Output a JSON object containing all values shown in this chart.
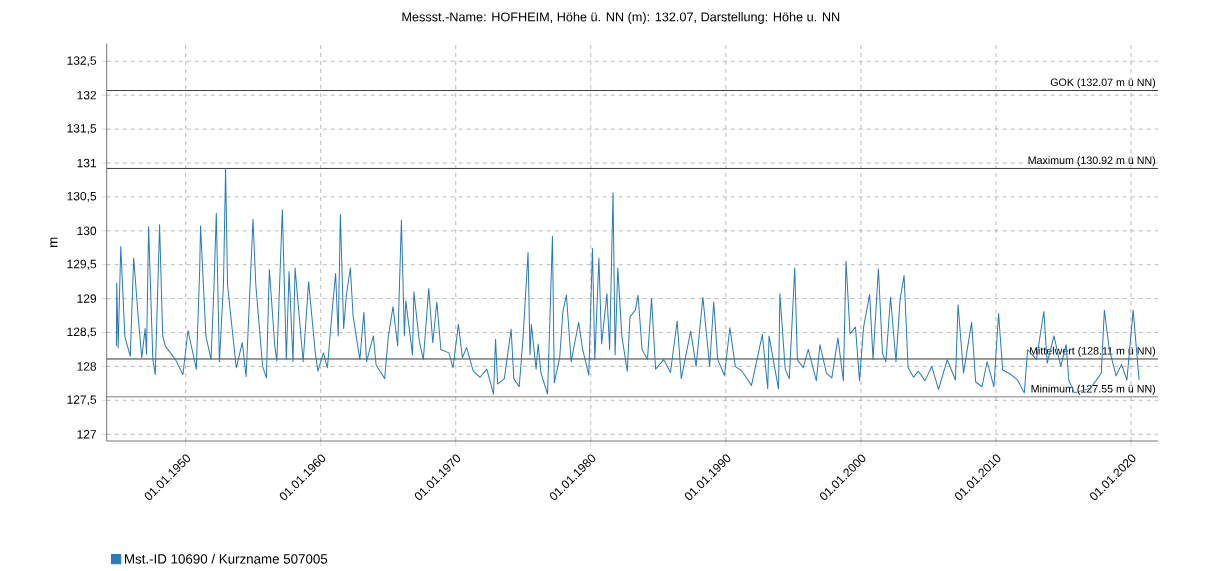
{
  "chart_data": {
    "type": "line",
    "title": "Messst.-Name: HOFHEIM, Höhe ü. NN (m): 132.07, Darstellung: Höhe u. NN",
    "ylabel": "m",
    "xlim": [
      "1944-02-25",
      "2022-01-01"
    ],
    "ylim": [
      126.9,
      132.76
    ],
    "xticks": [
      {
        "value": "1950-01-01",
        "label": "01.01.1950"
      },
      {
        "value": "1960-01-01",
        "label": "01.01.1960"
      },
      {
        "value": "1970-01-01",
        "label": "01.01.1970"
      },
      {
        "value": "1980-01-01",
        "label": "01.01.1980"
      },
      {
        "value": "1990-01-01",
        "label": "01.01.1990"
      },
      {
        "value": "2000-01-01",
        "label": "01.01.2000"
      },
      {
        "value": "2010-01-01",
        "label": "01.01.2010"
      },
      {
        "value": "2020-01-01",
        "label": "01.01.2020"
      }
    ],
    "yticks": [
      127,
      {
        "value": 127.5,
        "label": "127,5"
      },
      128,
      {
        "value": 128.5,
        "label": "128,5"
      },
      129,
      {
        "value": 129.5,
        "label": "129,5"
      },
      130,
      {
        "value": 130.5,
        "label": "130,5"
      },
      131,
      {
        "value": 131.5,
        "label": "131,5"
      },
      132,
      {
        "value": 132.5,
        "label": "132,5"
      }
    ],
    "grid": true,
    "legend": "bottom left",
    "ref_lines": [
      {
        "axis": "y",
        "value": 132.07,
        "label": "GOK (132.07 m ü NN)"
      },
      {
        "axis": "y",
        "value": 130.92,
        "label": "Maximum (130.92 m ü NN)"
      },
      {
        "axis": "y",
        "value": 128.11,
        "label": "Mittelwert (128.11 m ü NN)"
      },
      {
        "axis": "y",
        "value": 127.55,
        "label": "Minimum (127.55 m ü NN)"
      }
    ],
    "series": [
      {
        "name": "Mst.-ID 10690 / Kurzname 507005",
        "color": "#2a7ab8",
        "x": [
          "1944-11-14",
          "1944-11-25",
          "1945-01-01",
          "1945-03-13",
          "1945-07-01",
          "1945-11-25",
          "1946-02-25",
          "1946-07-01",
          "1946-10-01",
          "1947-01-01",
          "1947-02-07",
          "1947-04-04",
          "1947-07-28",
          "1947-10-01",
          "1948-01-26",
          "1948-04-19",
          "1948-07-01",
          "1949-04-01",
          "1949-10-19",
          "1950-03-05",
          "1950-10-15",
          "1951-01-15",
          "1951-02-07",
          "1951-07-01",
          "1951-11-17",
          "1952-02-07",
          "1952-04-08",
          "1952-07-01",
          "1952-10-19",
          "1952-12-16",
          "1953-02-07",
          "1953-07-01",
          "1953-10-01",
          "1954-03-13",
          "1954-06-23",
          "1954-12-27",
          "1955-03-13",
          "1955-09-13",
          "1955-12-23",
          "1956-03-13",
          "1956-08-07",
          "1956-10-01",
          "1957-02-28",
          "1957-06-16",
          "1957-08-28",
          "1957-12-13",
          "1958-02-07",
          "1958-09-13",
          "1959-02-07",
          "1959-08-07",
          "1959-10-19",
          "1960-03-13",
          "1960-07-01",
          "1960-11-03",
          "1961-02-07",
          "1961-04-19",
          "1961-06-16",
          "1961-09-13",
          "1961-11-25",
          "1962-03-13",
          "1962-05-25",
          "1962-11-25",
          "1963-03-13",
          "1963-05-25",
          "1963-11-25",
          "1964-02-07",
          "1964-09-27",
          "1965-01-01",
          "1965-05-10",
          "1965-09-13",
          "1965-12-23",
          "1966-03-13",
          "1966-04-19",
          "1966-10-19",
          "1966-11-25",
          "1967-04-19",
          "1967-08-07",
          "1968-01-01",
          "1968-04-19",
          "1968-08-07",
          "1968-11-25",
          "1969-07-01",
          "1969-10-19",
          "1970-03-13",
          "1970-07-01",
          "1970-10-19",
          "1971-04-19",
          "1971-10-19",
          "1972-04-19",
          "1972-10-19",
          "1972-12-13",
          "1973-02-07",
          "1973-08-07",
          "1974-02-07",
          "1974-04-19",
          "1974-09-13",
          "1974-12-23",
          "1975-05-10",
          "1975-07-01",
          "1975-08-07",
          "1975-12-13",
          "1976-02-07",
          "1976-04-19",
          "1976-10-19",
          "1977-02-28",
          "1977-04-19",
          "1977-09-13",
          "1977-12-05",
          "1978-03-13",
          "1978-07-19",
          "1979-02-07",
          "1979-05-25",
          "1979-11-07",
          "1980-02-14",
          "1980-04-19",
          "1980-08-07",
          "1980-10-19",
          "1981-03-13",
          "1981-05-25",
          "1981-08-25",
          "1981-10-19",
          "1982-01-01",
          "1982-04-19",
          "1982-09-13",
          "1982-11-25",
          "1983-04-19",
          "1983-07-01",
          "1983-10-19",
          "1984-03-13",
          "1984-07-01",
          "1984-10-19",
          "1985-05-25",
          "1985-11-25",
          "1986-05-25",
          "1986-09-13",
          "1987-05-25",
          "1987-10-19",
          "1988-04-19",
          "1988-10-19",
          "1989-02-07",
          "1989-05-25",
          "1989-11-25",
          "1990-04-19",
          "1990-09-13",
          "1991-03-13",
          "1991-11-25",
          "1992-09-13",
          "1993-02-07",
          "1993-03-13",
          "1993-11-25",
          "1994-01-01",
          "1994-05-25",
          "1994-09-13",
          "1995-02-07",
          "1995-04-19",
          "1995-09-23",
          "1996-02-07",
          "1996-09-13",
          "1996-12-20",
          "1997-06-13",
          "1997-11-07",
          "1998-04-19",
          "1998-09-13",
          "1998-11-25",
          "1999-03-13",
          "1999-08-07",
          "1999-11-25",
          "2000-03-13",
          "2000-08-25",
          "2000-11-25",
          "2001-03-13",
          "2001-04-19",
          "2001-08-07",
          "2001-11-07",
          "2002-03-13",
          "2002-08-07",
          "2002-11-25",
          "2003-03-13",
          "2003-07-01",
          "2003-11-25",
          "2004-04-01",
          "2004-10-01",
          "2005-04-01",
          "2005-10-01",
          "2006-05-25",
          "2007-01-01",
          "2007-03-13",
          "2007-08-07",
          "2008-03-13",
          "2008-07-01",
          "2008-12-20",
          "2009-05-07",
          "2009-11-07",
          "2010-03-13",
          "2010-07-01",
          "2011-02-07",
          "2011-08-07",
          "2012-02-07",
          "2012-05-07",
          "2013-01-01",
          "2013-07-19",
          "2013-10-19",
          "2014-04-19",
          "2014-10-19",
          "2015-03-13",
          "2015-05-25",
          "2015-10-19",
          "2017-01-01",
          "2017-10-19",
          "2018-01-11",
          "2018-05-25",
          "2018-11-25",
          "2019-04-19",
          "2019-09-13",
          "2020-02-28",
          "2020-08-07"
        ],
        "values": [
          128.3,
          129.23,
          128.27,
          129.77,
          128.44,
          128.15,
          129.6,
          128.7,
          128.13,
          128.56,
          128.18,
          130.06,
          128.1,
          127.88,
          130.09,
          128.45,
          128.3,
          128.1,
          127.88,
          128.53,
          127.96,
          129.43,
          130.07,
          128.45,
          128.1,
          129.2,
          130.26,
          128.07,
          129.2,
          130.92,
          129.2,
          128.45,
          127.98,
          128.35,
          127.85,
          130.17,
          129.2,
          128.0,
          127.83,
          129.43,
          128.3,
          128.08,
          130.31,
          128.1,
          129.4,
          128.07,
          129.45,
          128.07,
          129.25,
          128.2,
          127.93,
          128.2,
          127.98,
          128.8,
          129.37,
          128.45,
          130.24,
          128.56,
          129.05,
          129.45,
          128.75,
          128.1,
          128.8,
          128.07,
          128.45,
          128.02,
          127.82,
          128.43,
          128.88,
          128.3,
          130.16,
          128.45,
          128.97,
          128.17,
          129.1,
          128.38,
          128.1,
          129.15,
          128.35,
          128.95,
          128.25,
          128.2,
          127.98,
          128.62,
          128.13,
          128.28,
          127.93,
          127.84,
          127.96,
          127.59,
          128.4,
          127.74,
          127.82,
          128.55,
          127.82,
          127.7,
          128.4,
          129.68,
          128.17,
          128.62,
          127.96,
          128.33,
          127.91,
          127.59,
          129.92,
          127.76,
          128.13,
          128.8,
          129.05,
          128.07,
          128.65,
          128.25,
          127.87,
          129.74,
          128.1,
          129.6,
          128.33,
          129.07,
          128.25,
          130.56,
          128.17,
          129.45,
          128.45,
          127.93,
          128.73,
          128.83,
          129.05,
          128.25,
          128.1,
          129.0,
          127.96,
          128.1,
          127.91,
          128.67,
          127.82,
          128.52,
          128.0,
          129.02,
          128.0,
          128.95,
          128.1,
          127.87,
          128.57,
          128.0,
          127.93,
          127.72,
          128.47,
          127.67,
          128.45,
          127.67,
          129.07,
          127.96,
          127.82,
          129.45,
          128.1,
          127.98,
          128.25,
          127.79,
          128.32,
          127.9,
          127.83,
          128.42,
          127.79,
          129.55,
          128.48,
          128.58,
          127.79,
          128.58,
          129.06,
          128.1,
          129.1,
          129.44,
          128.19,
          128.07,
          129.02,
          128.07,
          128.98,
          129.34,
          127.98,
          127.84,
          127.93,
          127.79,
          128.0,
          127.66,
          128.1,
          127.8,
          128.91,
          127.9,
          128.65,
          127.77,
          127.7,
          128.07,
          127.7,
          128.78,
          127.95,
          127.88,
          127.8,
          127.61,
          128.25,
          128.1,
          128.81,
          128.05,
          128.45,
          128.0,
          128.32,
          127.8,
          127.61,
          127.68,
          127.9,
          128.83,
          128.25,
          127.86,
          128.03,
          127.8,
          128.83,
          127.8
        ]
      }
    ]
  }
}
